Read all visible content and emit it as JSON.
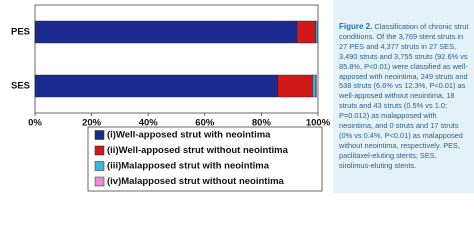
{
  "chart_data": {
    "type": "stacked-bar-horizontal",
    "categories": [
      "PES",
      "SES"
    ],
    "series": [
      {
        "name": "(i)Well-apposed strut with neointima",
        "color": "#1c2b8f",
        "values": [
          92.6,
          85.8
        ]
      },
      {
        "name": "(ii)Well-apposed strut without neointima",
        "color": "#d01818",
        "values": [
          6.6,
          12.3
        ]
      },
      {
        "name": "(iii)Malapposed strut with neointima",
        "color": "#38b8dc",
        "values": [
          0.5,
          1.0
        ]
      },
      {
        "name": "(iv)Malapposed strut without neointima",
        "color": "#ec8ccc",
        "values": [
          0,
          0.4
        ]
      }
    ],
    "xlim": [
      0,
      100
    ],
    "xticks": [
      {
        "value": 0,
        "label": "0%"
      },
      {
        "value": 20,
        "label": "20%"
      },
      {
        "value": 40,
        "label": "40%"
      },
      {
        "value": 60,
        "label": "60%"
      },
      {
        "value": 80,
        "label": "80%"
      },
      {
        "value": 100,
        "label": "100%"
      }
    ],
    "legend": "bottom"
  },
  "caption": {
    "label": "Figure 2.",
    "text": "Classification of chronic strut conditions. Of the 3,769 stent struts in 27 PES and 4,377 struts in 27 SES, 3,490 struts and 3,755 struts (92.6% vs 85.8%, P<0.01) were classified as well-apposed with neointima, 249 struts and 538 struts (6.6% vs 12.3%, P<0.01) as well-apposed without neointima, 18 struts and 43 struts (0.5% vs 1.0; P=0.012) as malapposed with neointima, and 0 struts and 17 struts (0% vs 0.4%, P<0.01) as malapposed without neointima, respectively. PES, paclitaxel-eluting stents; SES, sirolimus-eluting stents."
  }
}
